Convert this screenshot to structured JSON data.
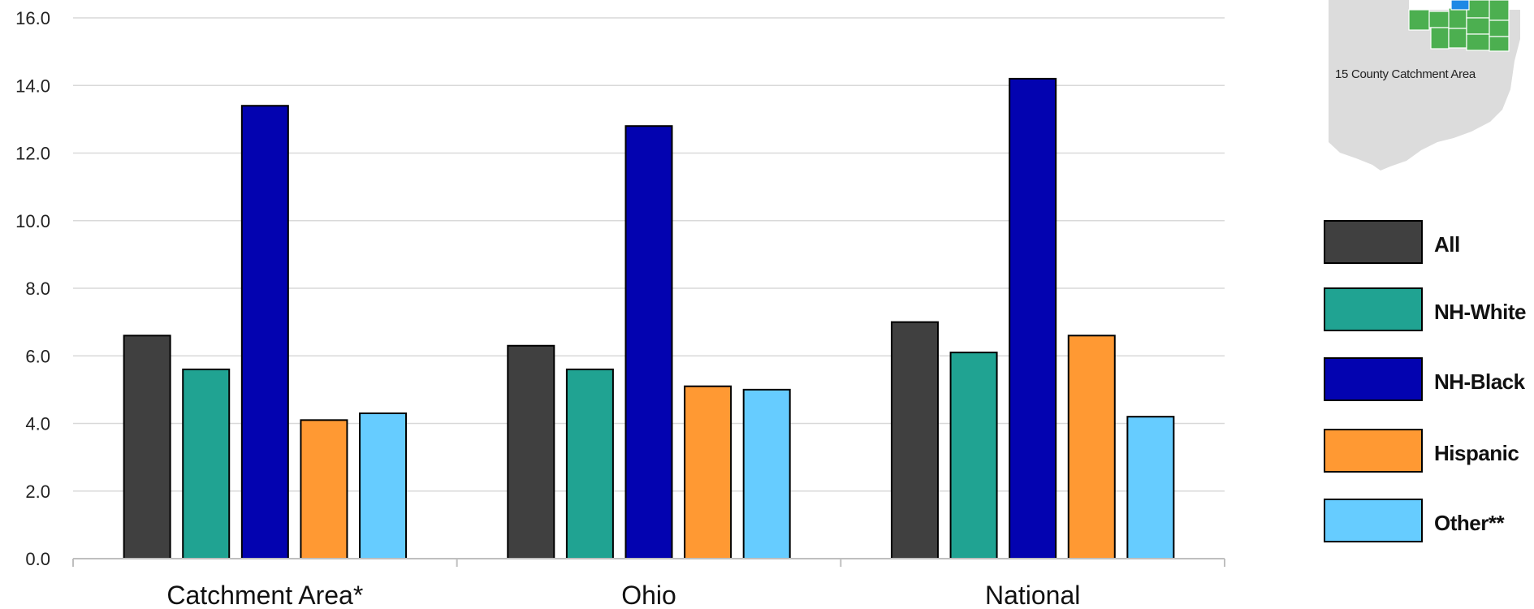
{
  "chart_data": {
    "type": "bar",
    "categories": [
      "Catchment Area*",
      "Ohio",
      "National"
    ],
    "series": [
      {
        "name": "All",
        "color": "#404040",
        "values": [
          6.6,
          6.3,
          7.0
        ]
      },
      {
        "name": "NH-White",
        "color": "#20A392",
        "values": [
          5.6,
          5.6,
          6.1
        ]
      },
      {
        "name": "NH-Black",
        "color": "#0303B0",
        "values": [
          13.4,
          12.8,
          14.2
        ]
      },
      {
        "name": "Hispanic",
        "color": "#FF9933",
        "values": [
          4.1,
          5.1,
          6.6
        ]
      },
      {
        "name": "Other**",
        "color": "#66CCFF",
        "values": [
          4.3,
          5.0,
          4.2
        ]
      }
    ],
    "ylim": [
      0,
      16
    ],
    "yticks": [
      "0.0",
      "2.0",
      "4.0",
      "6.0",
      "8.0",
      "10.0",
      "12.0",
      "14.0",
      "16.0"
    ],
    "grid": true,
    "legend_position": "right"
  },
  "inset_map": {
    "caption": "15 County Catchment Area",
    "region_color": "#DCDCDC",
    "catchment_color": "#4CAF50",
    "highlight_color": "#1E88E5"
  }
}
